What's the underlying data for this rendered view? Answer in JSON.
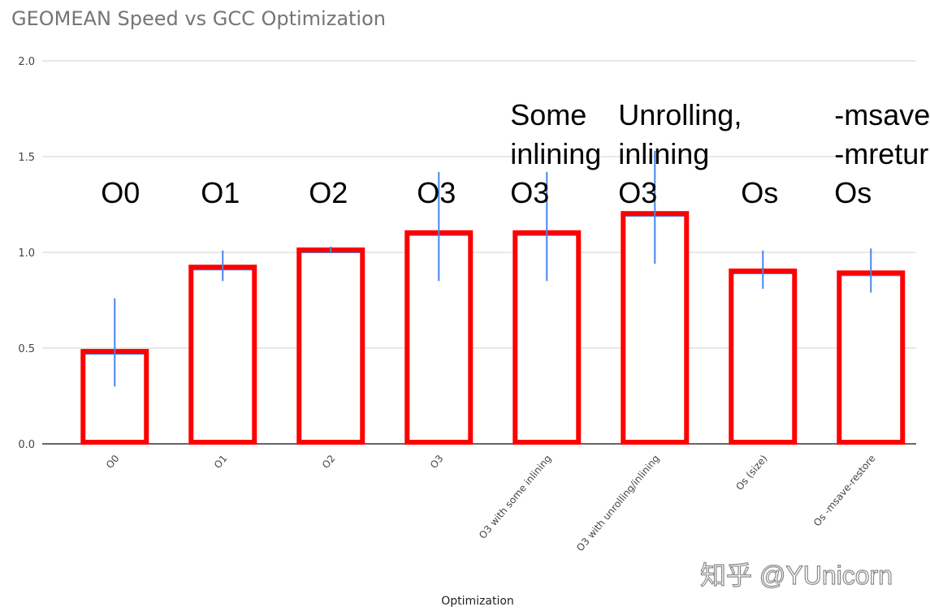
{
  "chart_data": {
    "type": "bar",
    "title": "GEOMEAN Speed vs GCC Optimization",
    "xlabel": "Optimization",
    "ylabel": "",
    "ylim": [
      0,
      2.0
    ],
    "yticks": [
      "0.0",
      "0.5",
      "1.0",
      "1.5",
      "2.0"
    ],
    "grid": true,
    "categories": [
      "O0",
      "O1",
      "O2",
      "O3",
      "O3 with some inlining",
      "O3 with unrolling/inlining",
      "Os (size)",
      "Os -msave-restore"
    ],
    "values": [
      0.47,
      0.91,
      1.0,
      1.09,
      1.09,
      1.19,
      0.89,
      0.88
    ],
    "error_low": [
      0.3,
      0.85,
      1.0,
      0.85,
      0.85,
      0.94,
      0.81,
      0.79
    ],
    "error_high": [
      0.76,
      1.01,
      1.03,
      1.42,
      1.42,
      1.53,
      1.01,
      1.02
    ],
    "colors": {
      "bar_fill": "#ffffff",
      "bar_highlight": "#ff0000",
      "error_bar": "#4a86e8",
      "grid": "#d0d0d0"
    },
    "annotations": [
      [
        "O0"
      ],
      [
        "O1"
      ],
      [
        "O2"
      ],
      [
        "O3"
      ],
      [
        "Some",
        "inlining",
        "O3"
      ],
      [
        "Unrolling,",
        "inlining",
        "O3"
      ],
      [
        "Os"
      ],
      [
        "-msave",
        "-mreturn",
        "Os"
      ]
    ]
  },
  "watermark": "知乎 @YUnicorn"
}
